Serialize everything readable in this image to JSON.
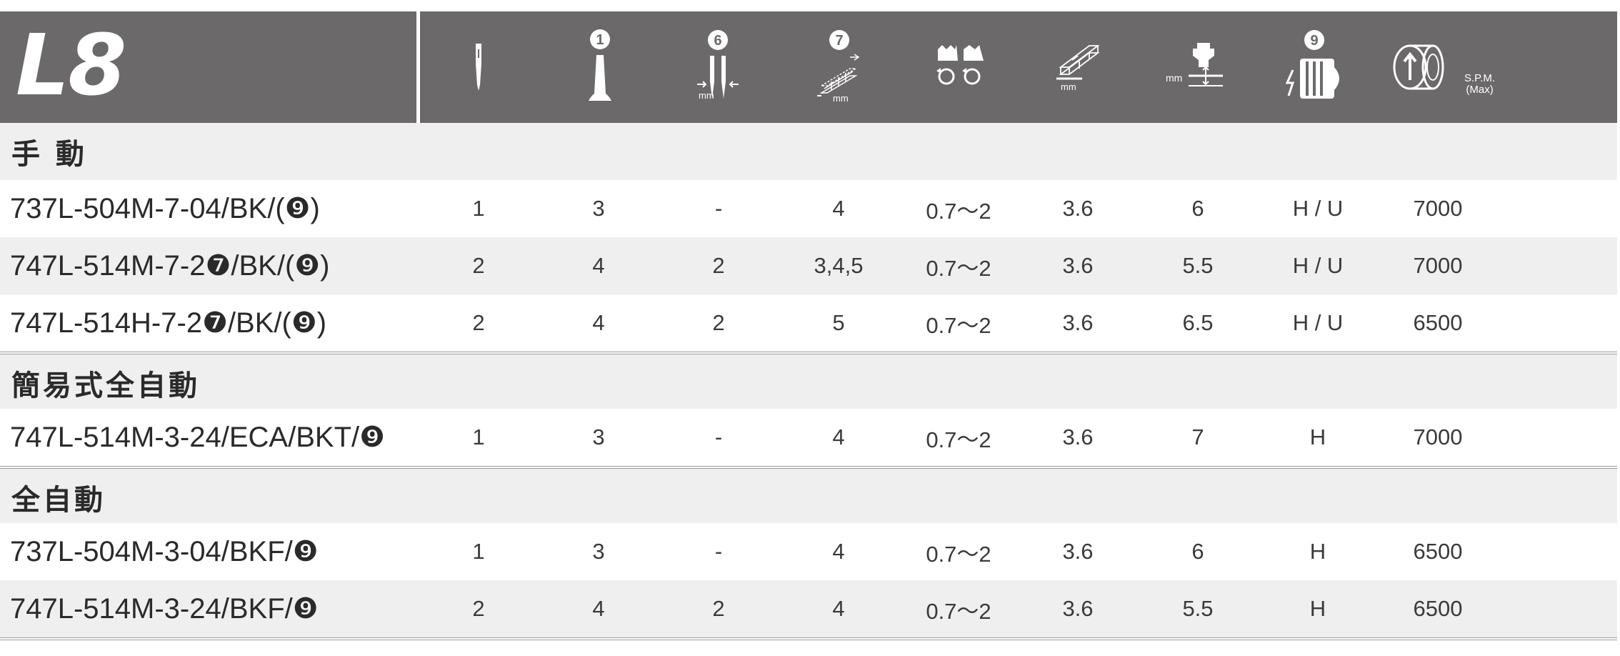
{
  "header": {
    "logo": "L8",
    "spm_label_line1": "S.P.M.",
    "spm_label_line2": "(Max)",
    "icon_units": {
      "col6": "mm",
      "col7": "mm",
      "col8": "mm",
      "col9": "mm"
    },
    "circled_numbers": {
      "col2": "❶",
      "col3": "❻",
      "col4": "❼",
      "col8": "❾"
    }
  },
  "sections": [
    {
      "label": "手 動",
      "rows": [
        {
          "model": "737L-504M-7-04/BK/(❾)",
          "values": [
            "1",
            "3",
            "-",
            "4",
            "0.7～2",
            "3.6",
            "6",
            "H / U",
            "7000"
          ]
        },
        {
          "model": "747L-514M-7-2❼/BK/(❾)",
          "values": [
            "2",
            "4",
            "2",
            "3,4,5",
            "0.7～2",
            "3.6",
            "5.5",
            "H / U",
            "7000"
          ]
        },
        {
          "model": "747L-514H-7-2❼/BK/(❾)",
          "values": [
            "2",
            "4",
            "2",
            "5",
            "0.7～2",
            "3.6",
            "6.5",
            "H / U",
            "6500"
          ]
        }
      ]
    },
    {
      "label": "簡易式全自動",
      "rows": [
        {
          "model": "747L-514M-3-24/ECA/BKT/❾",
          "values": [
            "1",
            "3",
            "-",
            "4",
            "0.7～2",
            "3.6",
            "7",
            "H",
            "7000"
          ]
        }
      ]
    },
    {
      "label": "全自動",
      "rows": [
        {
          "model": "737L-504M-3-04/BKF/❾",
          "values": [
            "1",
            "3",
            "-",
            "4",
            "0.7～2",
            "3.6",
            "6",
            "H",
            "6500"
          ]
        },
        {
          "model": "747L-514M-3-24/BKF/❾",
          "values": [
            "2",
            "4",
            "2",
            "4",
            "0.7～2",
            "3.6",
            "5.5",
            "H",
            "6500"
          ]
        }
      ]
    }
  ],
  "colors": {
    "header_bg": "#6b6969",
    "row_alt": "#efefef",
    "text": "#2a2a2a"
  }
}
